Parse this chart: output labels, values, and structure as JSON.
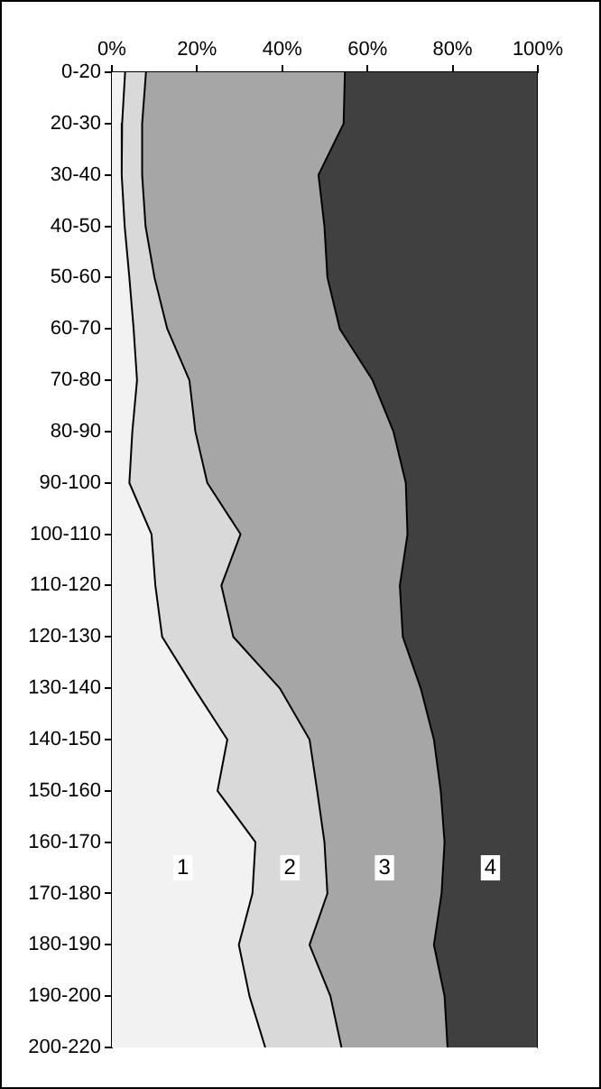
{
  "chart_data": {
    "type": "area",
    "orientation": "horizontal",
    "stacked": true,
    "categories": [
      "0-20",
      "20-30",
      "30-40",
      "40-50",
      "50-60",
      "60-70",
      "70-80",
      "80-90",
      "90-100",
      "100-110",
      "110-120",
      "120-130",
      "130-140",
      "140-150",
      "150-160",
      "160-170",
      "170-180",
      "180-190",
      "190-200",
      "200-220"
    ],
    "series": [
      {
        "name": "1",
        "color": "#f2f2f2",
        "values": [
          3.1,
          2.4,
          2.3,
          3,
          4.1,
          5.1,
          5.9,
          4.8,
          4.1,
          9.3,
          10.2,
          11.8,
          19.3,
          27.1,
          24.8,
          33.7,
          33,
          29.8,
          32.3,
          36
        ]
      },
      {
        "name": "2",
        "color": "#d9d9d9",
        "values": [
          4.9,
          4.7,
          4.8,
          4.9,
          5.9,
          7.9,
          12.3,
          14.8,
          18.3,
          20.9,
          15.5,
          16.7,
          20.1,
          19.3,
          23.4,
          16.2,
          17.6,
          16.6,
          19,
          17.9
        ]
      },
      {
        "name": "3",
        "color": "#a6a6a6",
        "values": [
          46.7,
          47.3,
          41.4,
          42,
          40.6,
          40.5,
          43,
          46.5,
          46.6,
          39.2,
          41.9,
          39.8,
          33.1,
          29.2,
          29,
          28.2,
          26.8,
          29.2,
          26.8,
          24.9
        ]
      },
      {
        "name": "4",
        "color": "#404040",
        "values": [
          45.3,
          45.6,
          51.5,
          50.1,
          49.4,
          46.5,
          38.8,
          33.9,
          31,
          30.6,
          32.4,
          31.7,
          27.5,
          24.4,
          22.8,
          21.9,
          22.6,
          24.4,
          21.9,
          21.2
        ]
      }
    ],
    "xlim": [
      0,
      100
    ],
    "xticks": [
      {
        "value": 0,
        "label": "0%"
      },
      {
        "value": 20,
        "label": "20%"
      },
      {
        "value": 40,
        "label": "40%"
      },
      {
        "value": 60,
        "label": "60%"
      },
      {
        "value": 80,
        "label": "80%"
      },
      {
        "value": 100,
        "label": "100%"
      }
    ],
    "grid": false,
    "legend": false,
    "marker": "none"
  }
}
